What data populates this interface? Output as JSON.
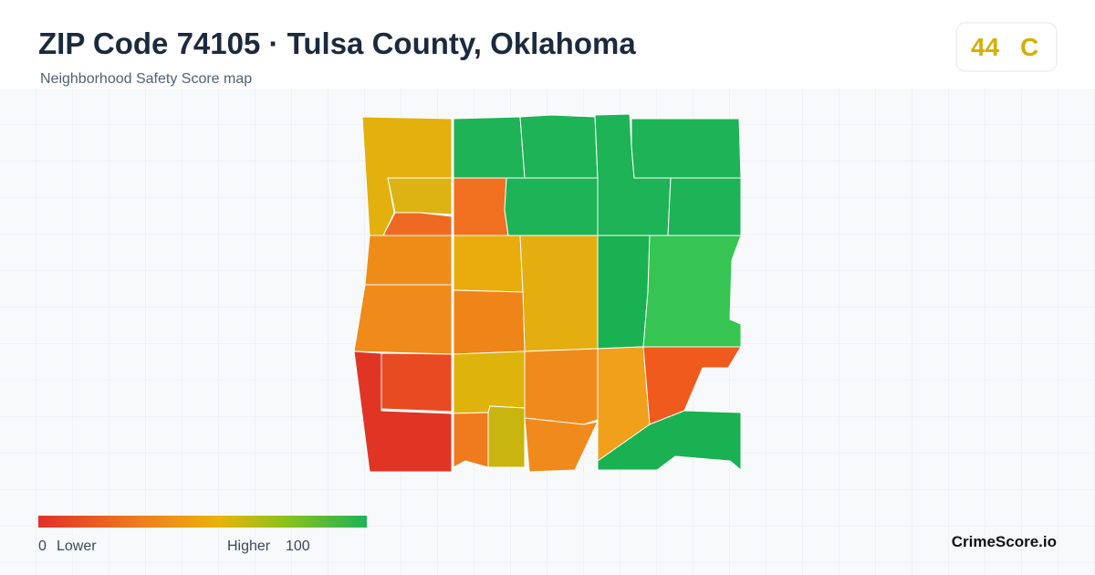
{
  "header": {
    "title": "ZIP Code 74105 · Tulsa County, Oklahoma",
    "subtitle": "Neighborhood Safety Score map"
  },
  "score_badge": {
    "score": "44",
    "grade": "C"
  },
  "legend": {
    "min": "0",
    "min_label": "Lower",
    "max_label": "Higher",
    "max": "100"
  },
  "brand": "CrimeScore.io"
}
